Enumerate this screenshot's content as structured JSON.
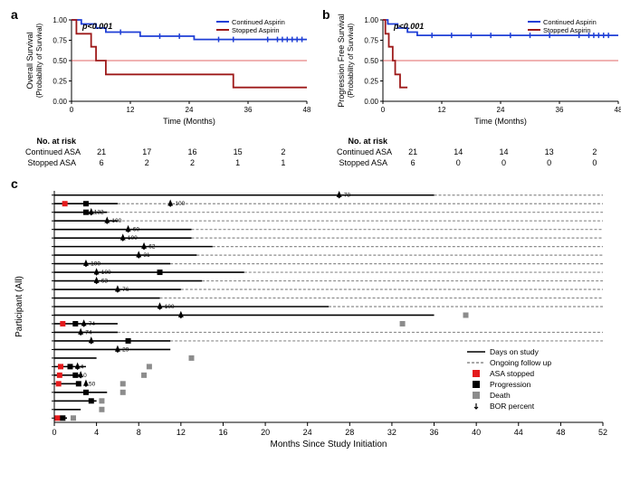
{
  "colors": {
    "continued": "#1f3fd6",
    "stopped": "#9e1a1a",
    "axis": "#000000",
    "ref_line": "#d83030",
    "grid_bg": "#ffffff",
    "solid_line": "#000000",
    "dashed_line": "#8c8c8c",
    "asa_stopped": "#e41a1c",
    "progression": "#000000",
    "death": "#8c8c8c",
    "bor_marker": "#000000"
  },
  "panel_a": {
    "label": "a",
    "pvalue": "p<0.001",
    "ylabel1": "Overall Survival",
    "ylabel2": "(Probability of Survival)",
    "xlabel": "Time (Months)",
    "ylim": [
      0,
      1.0
    ],
    "yticks": [
      0,
      0.25,
      0.5,
      0.75,
      1.0
    ],
    "xlim": [
      0,
      48
    ],
    "xticks": [
      0,
      12,
      24,
      36,
      48
    ],
    "ref_y": 0.5,
    "legend": {
      "continued": "Continued Aspirin",
      "stopped": "Stopped Aspirin"
    },
    "series": {
      "continued": [
        {
          "t": 0,
          "s": 1.0
        },
        {
          "t": 2,
          "s": 1.0
        },
        {
          "t": 2,
          "s": 0.95
        },
        {
          "t": 5,
          "s": 0.95
        },
        {
          "t": 5,
          "s": 0.9
        },
        {
          "t": 7,
          "s": 0.9
        },
        {
          "t": 7,
          "s": 0.85
        },
        {
          "t": 14,
          "s": 0.85
        },
        {
          "t": 14,
          "s": 0.8
        },
        {
          "t": 25,
          "s": 0.8
        },
        {
          "t": 25,
          "s": 0.76
        },
        {
          "t": 48,
          "s": 0.76
        }
      ],
      "continued_ticks": [
        10,
        18,
        22,
        30,
        33,
        40,
        42,
        43,
        44,
        45,
        46,
        47
      ],
      "stopped": [
        {
          "t": 0,
          "s": 1.0
        },
        {
          "t": 1,
          "s": 1.0
        },
        {
          "t": 1,
          "s": 0.83
        },
        {
          "t": 4,
          "s": 0.83
        },
        {
          "t": 4,
          "s": 0.67
        },
        {
          "t": 5,
          "s": 0.67
        },
        {
          "t": 5,
          "s": 0.5
        },
        {
          "t": 7,
          "s": 0.5
        },
        {
          "t": 7,
          "s": 0.33
        },
        {
          "t": 33,
          "s": 0.33
        },
        {
          "t": 33,
          "s": 0.17
        },
        {
          "t": 48,
          "s": 0.17
        }
      ],
      "stopped_ticks": []
    },
    "risk": {
      "header": "No. at risk",
      "labels": [
        "Continued ASA",
        "Stopped ASA"
      ],
      "times": [
        0,
        12,
        24,
        36,
        48
      ],
      "rows": [
        [
          21,
          17,
          16,
          15,
          2
        ],
        [
          6,
          2,
          2,
          1,
          1
        ]
      ]
    }
  },
  "panel_b": {
    "label": "b",
    "pvalue": "p<0.001",
    "ylabel1": "Progression Free Survival",
    "ylabel2": "(Probability of Survival)",
    "xlabel": "Time (Months)",
    "ylim": [
      0,
      1.0
    ],
    "yticks": [
      0,
      0.25,
      0.5,
      0.75,
      1.0
    ],
    "xlim": [
      0,
      48
    ],
    "xticks": [
      0,
      12,
      24,
      36,
      48
    ],
    "ref_y": 0.5,
    "legend": {
      "continued": "Continued Aspirin",
      "stopped": "Stopped Aspirin"
    },
    "series": {
      "continued": [
        {
          "t": 0,
          "s": 1.0
        },
        {
          "t": 1,
          "s": 1.0
        },
        {
          "t": 1,
          "s": 0.95
        },
        {
          "t": 3,
          "s": 0.95
        },
        {
          "t": 3,
          "s": 0.9
        },
        {
          "t": 5,
          "s": 0.9
        },
        {
          "t": 5,
          "s": 0.85
        },
        {
          "t": 7,
          "s": 0.85
        },
        {
          "t": 7,
          "s": 0.81
        },
        {
          "t": 48,
          "s": 0.81
        }
      ],
      "continued_ticks": [
        10,
        14,
        18,
        22,
        26,
        30,
        34,
        40,
        42,
        43,
        44,
        45,
        46
      ],
      "stopped": [
        {
          "t": 0,
          "s": 1.0
        },
        {
          "t": 0.5,
          "s": 1.0
        },
        {
          "t": 0.5,
          "s": 0.83
        },
        {
          "t": 1.2,
          "s": 0.83
        },
        {
          "t": 1.2,
          "s": 0.67
        },
        {
          "t": 2,
          "s": 0.67
        },
        {
          "t": 2,
          "s": 0.5
        },
        {
          "t": 2.5,
          "s": 0.5
        },
        {
          "t": 2.5,
          "s": 0.33
        },
        {
          "t": 3.5,
          "s": 0.33
        },
        {
          "t": 3.5,
          "s": 0.17
        },
        {
          "t": 5,
          "s": 0.17
        }
      ],
      "stopped_ticks": []
    },
    "risk": {
      "header": "No. at risk",
      "labels": [
        "Continued ASA",
        "Stopped ASA"
      ],
      "times": [
        0,
        12,
        24,
        36,
        48
      ],
      "rows": [
        [
          21,
          14,
          14,
          13,
          2
        ],
        [
          6,
          0,
          0,
          0,
          0
        ]
      ]
    }
  },
  "panel_c": {
    "label": "c",
    "ylabel": "Participant (All)",
    "xlabel": "Months Since Study Initiation",
    "xlim": [
      0,
      52
    ],
    "xticks": [
      0,
      4,
      8,
      12,
      16,
      20,
      24,
      28,
      32,
      36,
      40,
      44,
      48,
      52
    ],
    "legend": {
      "days_on_study": "Days on study",
      "ongoing": "Ongoing follow up",
      "asa_stopped": "ASA stopped",
      "progression": "Progression",
      "death": "Death",
      "bor": "BOR percent"
    },
    "lanes": [
      {
        "solid_end": 36,
        "ongoing": 52,
        "bor": {
          "m": 27,
          "label": "-78"
        }
      },
      {
        "solid_end": 6,
        "ongoing": 52,
        "asa": 1,
        "prog": 3,
        "bor": {
          "m": 11,
          "label": "-100"
        }
      },
      {
        "solid_end": 5,
        "ongoing": 52,
        "prog": 3,
        "bor": {
          "m": 3.5,
          "label": "132"
        }
      },
      {
        "solid_end": 6,
        "ongoing": 52,
        "bor": {
          "m": 5,
          "label": "-100"
        }
      },
      {
        "solid_end": 13,
        "ongoing": 52,
        "bor": {
          "m": 7,
          "label": "-60"
        }
      },
      {
        "solid_end": 13,
        "ongoing": 52,
        "bor": {
          "m": 6.5,
          "label": "-100"
        }
      },
      {
        "solid_end": 15,
        "ongoing": 52,
        "bor": {
          "m": 8.5,
          "label": "-62"
        }
      },
      {
        "solid_end": 13.5,
        "ongoing": 52,
        "bor": {
          "m": 8,
          "label": "-31"
        }
      },
      {
        "solid_end": 11,
        "ongoing": 52,
        "bor": {
          "m": 3,
          "label": "-100"
        }
      },
      {
        "solid_end": 18,
        "ongoing": 52,
        "prog": 10,
        "bor": {
          "m": 4,
          "label": "-100"
        }
      },
      {
        "solid_end": 14,
        "ongoing": 52,
        "bor": {
          "m": 4,
          "label": "-63"
        }
      },
      {
        "solid_end": 12,
        "ongoing": 52,
        "bor": {
          "m": 6,
          "label": "-76"
        }
      },
      {
        "solid_end": 10,
        "ongoing": 52
      },
      {
        "solid_end": 26,
        "ongoing": 52,
        "bor": {
          "m": 10,
          "label": "-100"
        }
      },
      {
        "solid_end": 36,
        "death": 39,
        "bor": {
          "m": 12,
          "label": ""
        }
      },
      {
        "solid_end": 6,
        "death": 33,
        "asa": 0.8,
        "prog": 2,
        "bor": {
          "m": 2.8,
          "label": "-74"
        }
      },
      {
        "solid_end": 6,
        "ongoing": 52,
        "bor": {
          "m": 2.5,
          "label": "-74"
        }
      },
      {
        "solid_end": 11,
        "ongoing": 52,
        "prog": 7,
        "bor": {
          "m": 3.5,
          "label": ""
        }
      },
      {
        "solid_end": 11,
        "bor": {
          "m": 6,
          "label": "-29"
        }
      },
      {
        "solid_end": 4,
        "death": 13
      },
      {
        "solid_end": 3,
        "death": 9,
        "asa": 0.6,
        "prog": 1.5,
        "bor": {
          "m": 2.2,
          "label": "4"
        }
      },
      {
        "solid_end": 2.5,
        "death": 8.5,
        "asa": 0.5,
        "prog": 2,
        "bor": {
          "m": 2.5,
          "label": "0"
        }
      },
      {
        "solid_end": 2.2,
        "death": 6.5,
        "asa": 0.4,
        "prog": 2.3,
        "bor": {
          "m": 3,
          "label": "50"
        }
      },
      {
        "solid_end": 5,
        "death": 6.5,
        "prog": 3
      },
      {
        "solid_end": 4,
        "death": 4.5,
        "prog": 3.5
      },
      {
        "solid_end": 2.5,
        "death": 4.5
      },
      {
        "solid_end": 1.2,
        "death": 1.8,
        "asa": 0.3,
        "prog": 0.8
      }
    ]
  }
}
